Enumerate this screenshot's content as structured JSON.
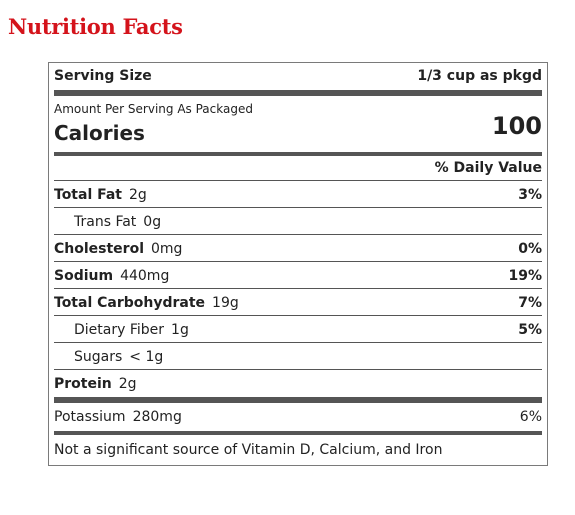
{
  "title": "Nutrition Facts",
  "serving": {
    "label": "Serving Size",
    "value": "1/3 cup as pkgd"
  },
  "calories": {
    "amount_label": "Amount Per Serving As Packaged",
    "label": "Calories",
    "value": "100"
  },
  "daily_value_header": "% Daily Value",
  "nutrients": [
    {
      "name": "Total Fat",
      "amount": "2g",
      "dv": "3%"
    },
    {
      "name": "Trans Fat",
      "amount": "0g",
      "dv": ""
    },
    {
      "name": "Cholesterol",
      "amount": "0mg",
      "dv": "0%"
    },
    {
      "name": "Sodium",
      "amount": "440mg",
      "dv": "19%"
    },
    {
      "name": "Total Carbohydrate",
      "amount": "19g",
      "dv": "7%"
    },
    {
      "name": "Dietary Fiber",
      "amount": "1g",
      "dv": "5%"
    },
    {
      "name": "Sugars",
      "amount": "< 1g",
      "dv": ""
    },
    {
      "name": "Protein",
      "amount": "2g",
      "dv": ""
    }
  ],
  "potassium": {
    "name": "Potassium",
    "amount": "280mg",
    "dv": "6%"
  },
  "footnote": "Not a significant source of Vitamin D, Calcium, and Iron"
}
